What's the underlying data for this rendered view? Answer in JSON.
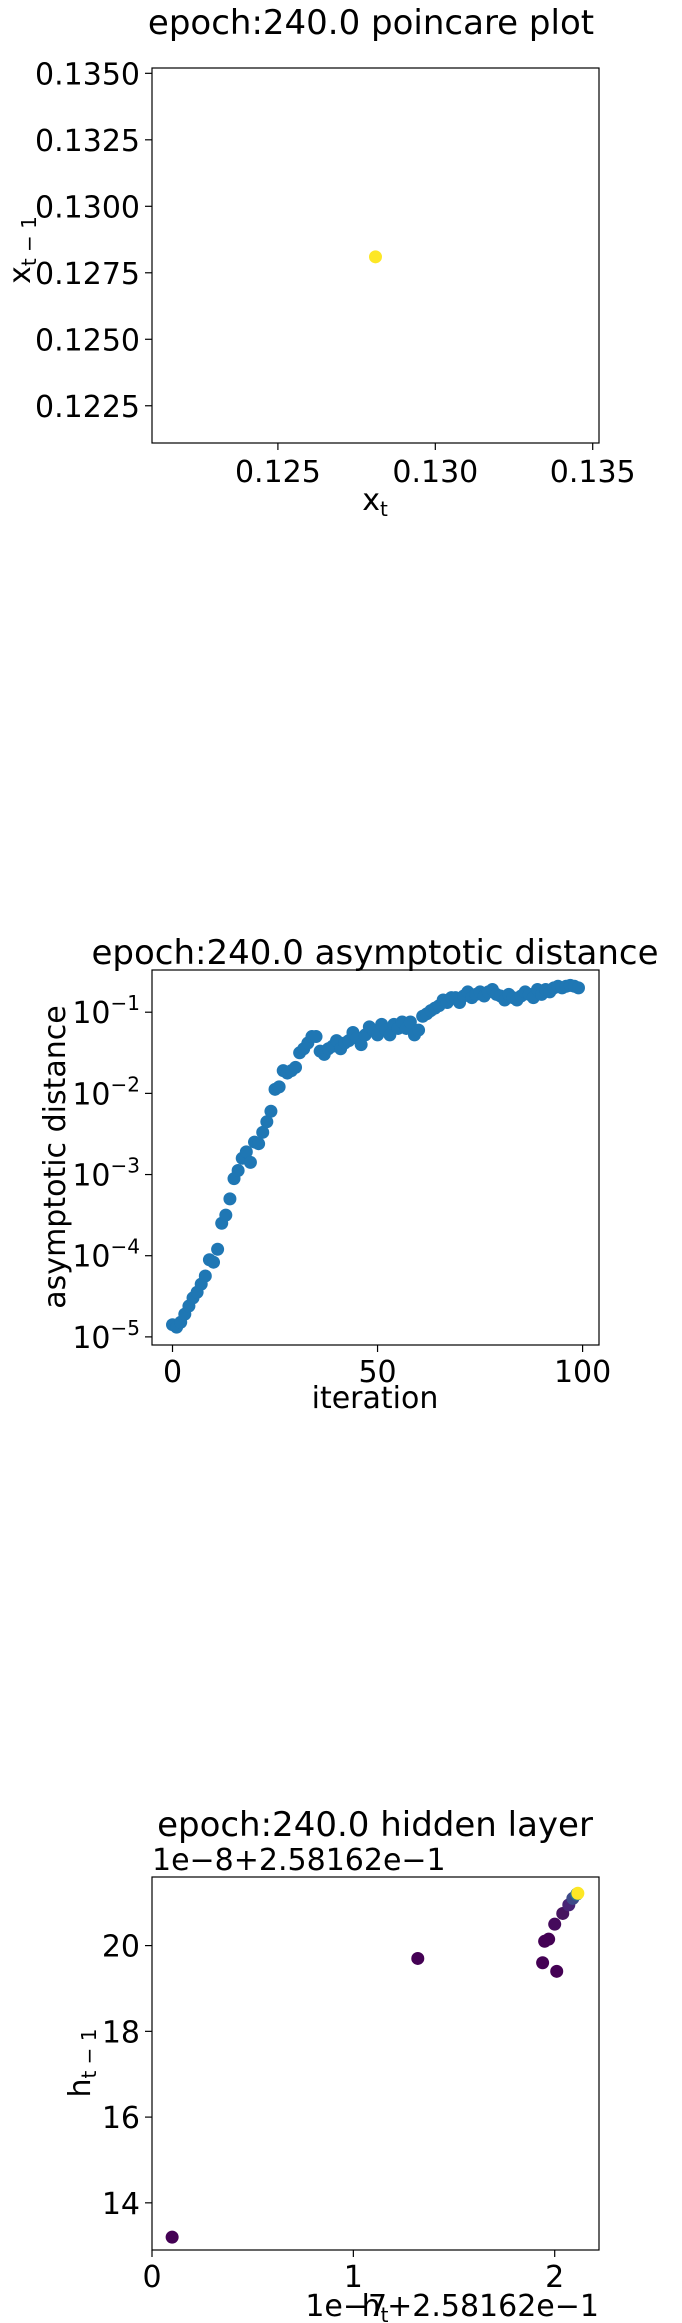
{
  "colors": {
    "axis": "#000000",
    "poincare_point": "#fde725",
    "asymptotic_points": "#1f77b4",
    "hidden_dark": "#440154",
    "hidden_light": "#fde725"
  },
  "chart_data": [
    {
      "type": "scatter",
      "title": "epoch:240.0 poincare plot",
      "xlabel_base": "x",
      "xlabel_sub": "t",
      "ylabel_base": "x",
      "ylabel_sub": "t − 1",
      "xlim": [
        0.121,
        0.1352
      ],
      "ylim": [
        0.1211,
        0.1352
      ],
      "xticks": [
        0.125,
        0.13,
        0.135
      ],
      "xtick_labels": [
        "0.125",
        "0.130",
        "0.135"
      ],
      "yticks": [
        0.1225,
        0.125,
        0.1275,
        0.13,
        0.1325,
        0.135
      ],
      "ytick_labels": [
        "0.1225",
        "0.1250",
        "0.1275",
        "0.1300",
        "0.1325",
        "0.1350"
      ],
      "points": [
        {
          "x": 0.1281,
          "y": 0.1281,
          "color": "#fde725"
        }
      ]
    },
    {
      "type": "scatter",
      "title": "epoch:240.0 asymptotic distance",
      "xlabel": "iteration",
      "ylabel": "asymptotic distance",
      "yscale": "log",
      "xlim": [
        -5,
        104
      ],
      "ylim_log10": [
        -5.1,
        -0.48
      ],
      "xticks": [
        0,
        50,
        100
      ],
      "xtick_labels": [
        "0",
        "50",
        "100"
      ],
      "yticks_exp": [
        -5,
        -4,
        -3,
        -2,
        -1
      ],
      "ytick_base": "10",
      "ytick_exp_labels": [
        "−5",
        "−4",
        "−3",
        "−2",
        "−1"
      ],
      "x": [
        0,
        1,
        2,
        3,
        4,
        5,
        6,
        7,
        8,
        9,
        10,
        11,
        12,
        13,
        14,
        15,
        16,
        17,
        18,
        19,
        20,
        21,
        22,
        23,
        24,
        25,
        26,
        27,
        28,
        29,
        30,
        31,
        32,
        33,
        34,
        35,
        36,
        37,
        38,
        39,
        40,
        41,
        42,
        43,
        44,
        45,
        46,
        47,
        48,
        49,
        50,
        51,
        52,
        53,
        54,
        55,
        56,
        57,
        58,
        59,
        60,
        61,
        62,
        63,
        64,
        65,
        66,
        67,
        68,
        69,
        70,
        71,
        72,
        73,
        74,
        75,
        76,
        77,
        78,
        79,
        80,
        81,
        82,
        83,
        84,
        85,
        86,
        87,
        88,
        89,
        90,
        91,
        92,
        93,
        94,
        95,
        96,
        97,
        98,
        99
      ],
      "y_log10": [
        -4.85,
        -4.88,
        -4.82,
        -4.72,
        -4.62,
        -4.52,
        -4.45,
        -4.35,
        -4.25,
        -4.05,
        -4.08,
        -3.92,
        -3.6,
        -3.5,
        -3.3,
        -3.05,
        -2.95,
        -2.8,
        -2.72,
        -2.85,
        -2.6,
        -2.62,
        -2.48,
        -2.35,
        -2.22,
        -1.95,
        -1.92,
        -1.72,
        -1.75,
        -1.72,
        -1.68,
        -1.5,
        -1.45,
        -1.38,
        -1.3,
        -1.3,
        -1.48,
        -1.52,
        -1.45,
        -1.42,
        -1.35,
        -1.45,
        -1.38,
        -1.35,
        -1.25,
        -1.32,
        -1.4,
        -1.28,
        -1.18,
        -1.22,
        -1.28,
        -1.15,
        -1.22,
        -1.28,
        -1.15,
        -1.2,
        -1.12,
        -1.2,
        -1.12,
        -1.28,
        -1.22,
        -1.05,
        -1.02,
        -0.98,
        -0.95,
        -0.92,
        -0.85,
        -0.88,
        -0.82,
        -0.82,
        -0.88,
        -0.8,
        -0.75,
        -0.82,
        -0.78,
        -0.75,
        -0.8,
        -0.75,
        -0.72,
        -0.78,
        -0.8,
        -0.85,
        -0.78,
        -0.82,
        -0.85,
        -0.8,
        -0.75,
        -0.78,
        -0.82,
        -0.72,
        -0.78,
        -0.72,
        -0.75,
        -0.7,
        -0.68,
        -0.7,
        -0.68,
        -0.67,
        -0.68,
        -0.7
      ]
    },
    {
      "type": "scatter",
      "title": "epoch:240.0 hidden layer",
      "y_offset_text": "1e−8+2.58162e−1",
      "x_offset_text": "1e−7+2.58162e−1",
      "xlabel_base": "h",
      "xlabel_sub": "t",
      "ylabel_base": "h",
      "ylabel_sub": "t − 1",
      "xlim": [
        0,
        2.22
      ],
      "ylim": [
        12.9,
        21.6
      ],
      "xticks": [
        0,
        1,
        2
      ],
      "xtick_labels": [
        "0",
        "1",
        "2"
      ],
      "yticks": [
        14,
        16,
        18,
        20
      ],
      "ytick_labels": [
        "14",
        "16",
        "18",
        "20"
      ],
      "points": [
        {
          "x": 0.1,
          "y": 13.2,
          "color": "#440154"
        },
        {
          "x": 1.32,
          "y": 19.7,
          "color": "#440154"
        },
        {
          "x": 1.94,
          "y": 19.6,
          "color": "#440154"
        },
        {
          "x": 2.01,
          "y": 19.4,
          "color": "#440154"
        },
        {
          "x": 1.95,
          "y": 20.1,
          "color": "#440154"
        },
        {
          "x": 1.97,
          "y": 20.15,
          "color": "#440154"
        },
        {
          "x": 2.0,
          "y": 20.5,
          "color": "#450a5c"
        },
        {
          "x": 2.04,
          "y": 20.75,
          "color": "#46145f"
        },
        {
          "x": 2.07,
          "y": 20.95,
          "color": "#482476"
        },
        {
          "x": 2.09,
          "y": 21.1,
          "color": "#3e4a89"
        },
        {
          "x": 2.11,
          "y": 21.2,
          "color": "#2a788e"
        },
        {
          "x": 2.115,
          "y": 21.22,
          "color": "#fde725"
        }
      ]
    }
  ]
}
